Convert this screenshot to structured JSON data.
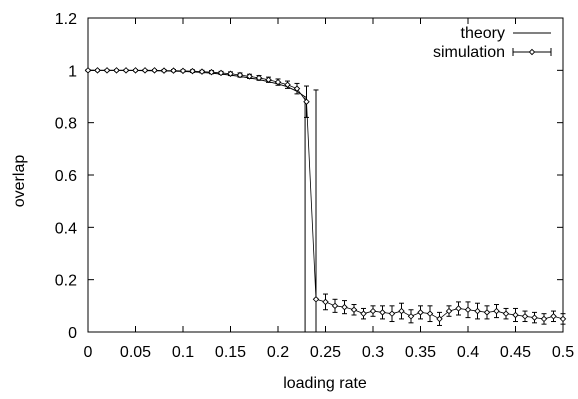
{
  "chart_data": {
    "type": "line",
    "xlabel": "loading rate",
    "ylabel": "overlap",
    "xlim": [
      0,
      0.5
    ],
    "ylim": [
      0,
      1.2
    ],
    "x_ticks": [
      0,
      0.05,
      0.1,
      0.15,
      0.2,
      0.25,
      0.3,
      0.35,
      0.4,
      0.45,
      0.5
    ],
    "x_tick_labels": [
      "0",
      "0.05",
      "0.1",
      "0.15",
      "0.2",
      "0.25",
      "0.3",
      "0.35",
      "0.4",
      "0.45",
      "0.5"
    ],
    "y_ticks": [
      0,
      0.2,
      0.4,
      0.6,
      0.8,
      1,
      1.2
    ],
    "y_tick_labels": [
      "0",
      "0.2",
      "0.4",
      "0.6",
      "0.8",
      "1",
      "1.2"
    ],
    "grid": false,
    "legend_position": "top-right",
    "series": [
      {
        "name": "theory",
        "style": "line",
        "x": [
          0,
          0.02,
          0.04,
          0.06,
          0.08,
          0.1,
          0.12,
          0.14,
          0.16,
          0.18,
          0.2,
          0.21,
          0.22,
          0.228,
          0.2285,
          0.2285,
          0.2285
        ],
        "y": [
          1.0,
          1.0,
          1.0,
          0.999,
          0.998,
          0.996,
          0.992,
          0.986,
          0.977,
          0.965,
          0.948,
          0.937,
          0.92,
          0.9,
          0.9,
          0.13,
          0.0
        ]
      },
      {
        "name": "simulation",
        "style": "points-errorbars",
        "x": [
          0,
          0.01,
          0.02,
          0.03,
          0.04,
          0.05,
          0.06,
          0.07,
          0.08,
          0.09,
          0.1,
          0.11,
          0.12,
          0.13,
          0.14,
          0.15,
          0.16,
          0.17,
          0.18,
          0.19,
          0.2,
          0.21,
          0.22,
          0.23,
          0.24,
          0.25,
          0.26,
          0.27,
          0.28,
          0.29,
          0.3,
          0.31,
          0.32,
          0.33,
          0.34,
          0.35,
          0.36,
          0.37,
          0.38,
          0.39,
          0.4,
          0.41,
          0.42,
          0.43,
          0.44,
          0.45,
          0.46,
          0.47,
          0.48,
          0.49,
          0.5
        ],
        "y": [
          1.0,
          1.0,
          1.0,
          1.0,
          1.0,
          1.0,
          1.0,
          1.0,
          0.999,
          0.999,
          0.998,
          0.997,
          0.995,
          0.993,
          0.99,
          0.987,
          0.982,
          0.977,
          0.971,
          0.964,
          0.955,
          0.945,
          0.93,
          0.88,
          0.125,
          0.115,
          0.1,
          0.095,
          0.085,
          0.07,
          0.08,
          0.075,
          0.07,
          0.08,
          0.06,
          0.075,
          0.07,
          0.05,
          0.08,
          0.09,
          0.085,
          0.08,
          0.075,
          0.08,
          0.07,
          0.065,
          0.06,
          0.055,
          0.05,
          0.06,
          0.05
        ],
        "err": [
          0.003,
          0.003,
          0.003,
          0.003,
          0.003,
          0.003,
          0.003,
          0.003,
          0.004,
          0.004,
          0.004,
          0.005,
          0.005,
          0.006,
          0.006,
          0.007,
          0.008,
          0.008,
          0.009,
          0.01,
          0.012,
          0.014,
          0.02,
          0.06,
          0.8,
          0.03,
          0.025,
          0.025,
          0.02,
          0.02,
          0.02,
          0.025,
          0.03,
          0.03,
          0.025,
          0.025,
          0.03,
          0.025,
          0.02,
          0.025,
          0.03,
          0.03,
          0.025,
          0.025,
          0.02,
          0.025,
          0.02,
          0.02,
          0.02,
          0.02,
          0.02
        ]
      }
    ]
  }
}
